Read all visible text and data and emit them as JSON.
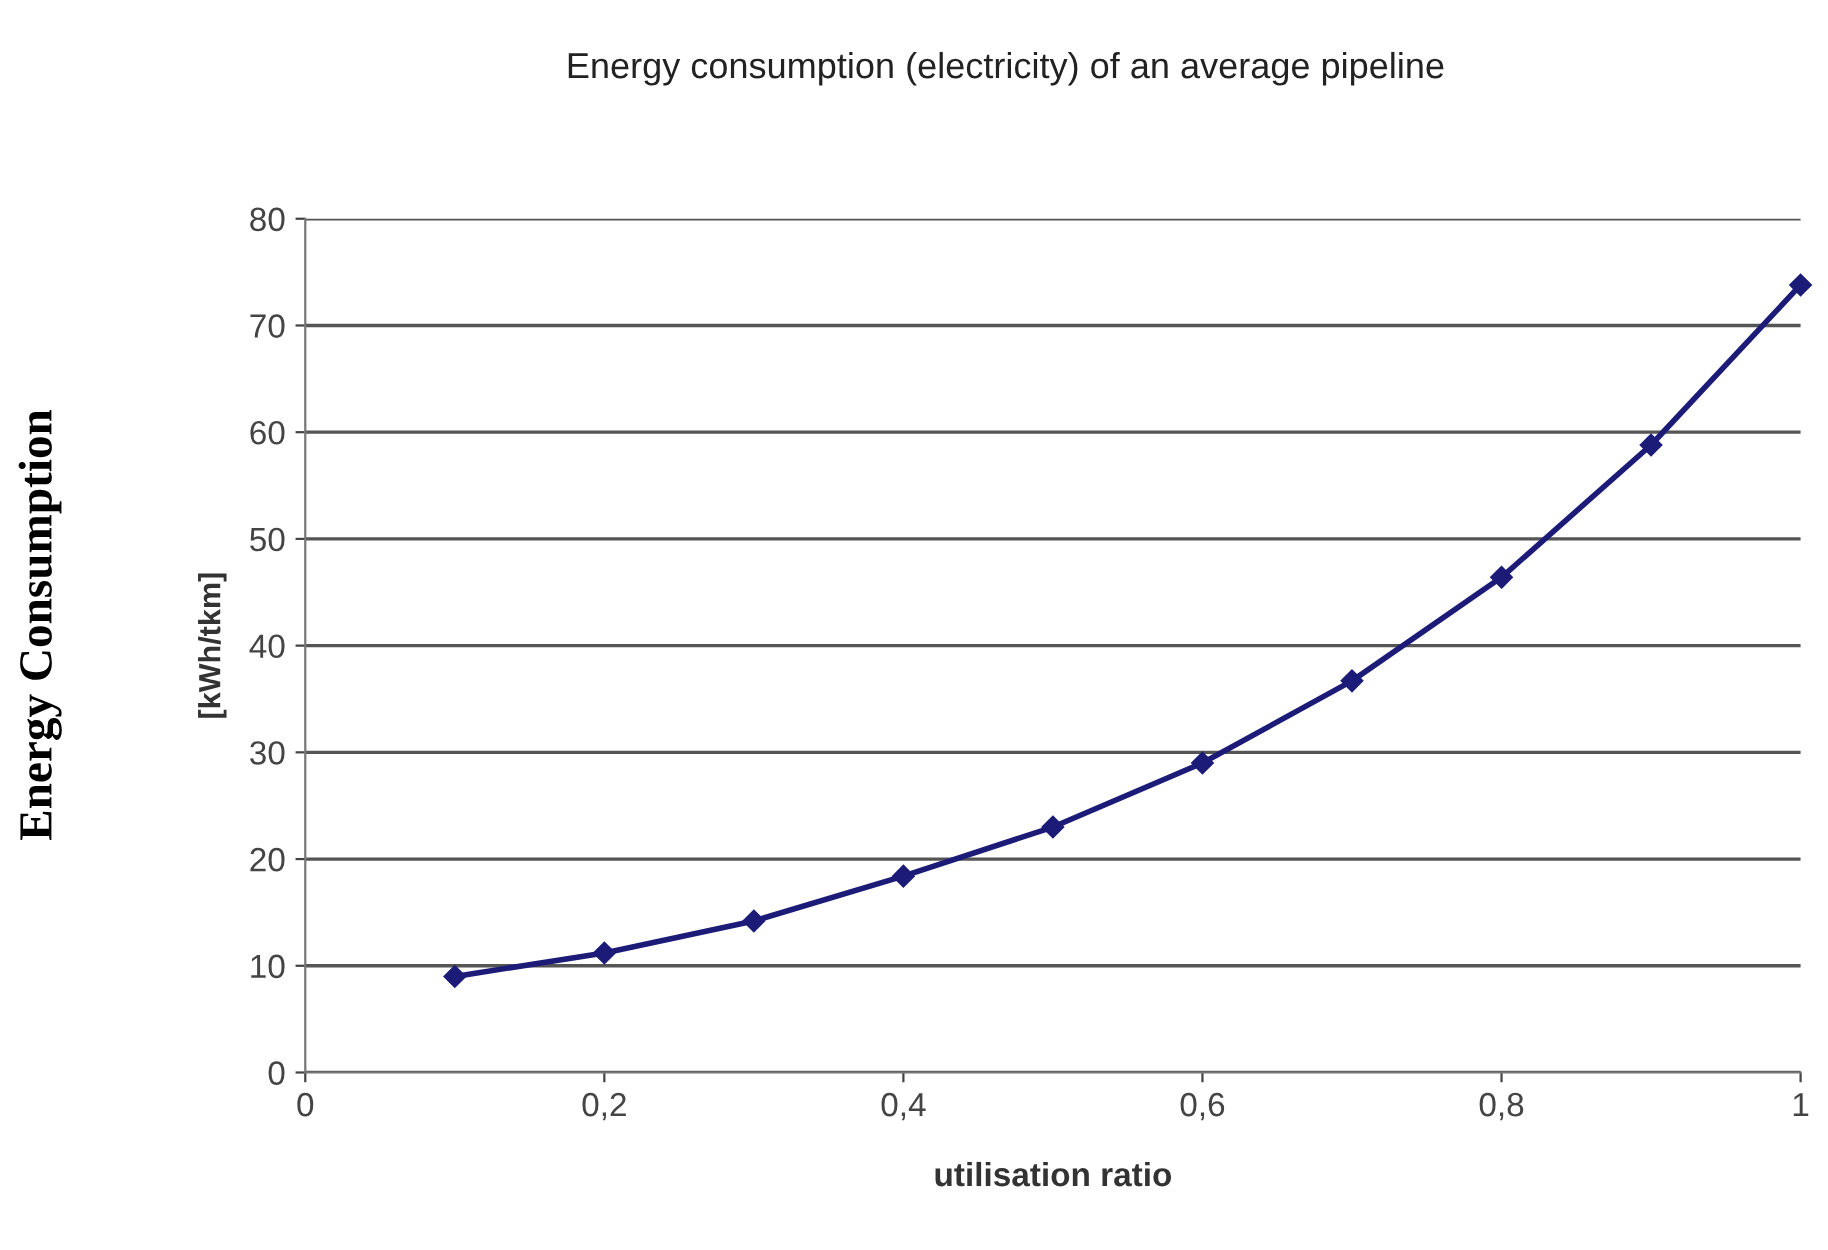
{
  "chart_data": {
    "type": "line",
    "title": "Energy consumption (electricity) of an average pipeline",
    "xlabel": "utilisation ratio",
    "ylabel": "[kWh/tkm]",
    "annotations": [
      "Energy Consumption"
    ],
    "x": [
      0.1,
      0.2,
      0.3,
      0.4,
      0.5,
      0.6,
      0.7,
      0.8,
      0.9,
      1.0
    ],
    "series": [
      {
        "color": "#1c1c78",
        "values": [
          9,
          11.2,
          14.2,
          18.4,
          23,
          29,
          36.7,
          46.4,
          58.8,
          73.8
        ]
      }
    ],
    "xlim": [
      0,
      1
    ],
    "xticks": [
      0,
      {
        "value": 0.2,
        "label": "0,2"
      },
      {
        "value": 0.4,
        "label": "0,4"
      },
      {
        "value": 0.6,
        "label": "0,6"
      },
      {
        "value": 0.8,
        "label": "0,8"
      },
      1
    ],
    "ylim": [
      0,
      80
    ],
    "yticks": [
      0,
      10,
      20,
      30,
      40,
      50,
      60,
      70,
      80
    ],
    "grid": "y",
    "marker": "diamond",
    "line_style": "solid"
  }
}
